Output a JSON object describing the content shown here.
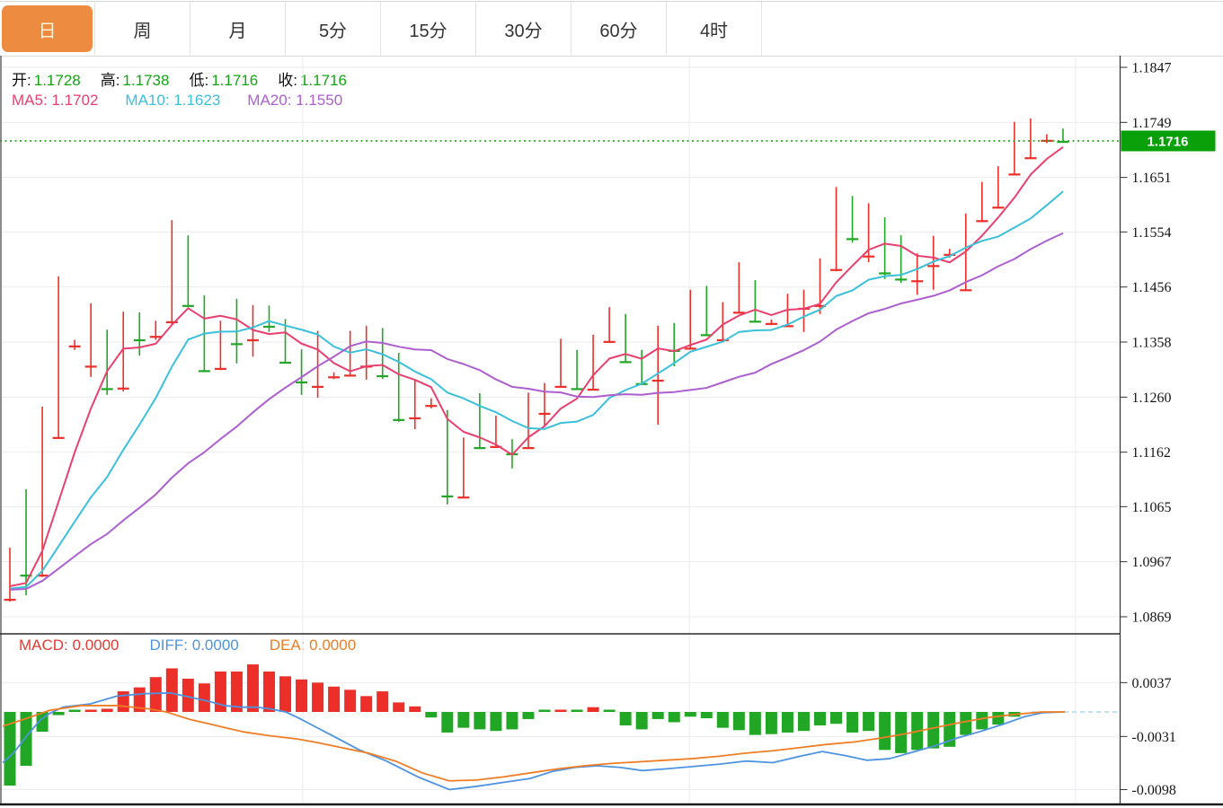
{
  "header": {
    "tabs": [
      {
        "label": "日",
        "selected": true
      },
      {
        "label": "周",
        "selected": false
      },
      {
        "label": "月",
        "selected": false
      },
      {
        "label": "5分",
        "selected": false
      },
      {
        "label": "15分",
        "selected": false
      },
      {
        "label": "30分",
        "selected": false
      },
      {
        "label": "60分",
        "selected": false
      },
      {
        "label": "4时",
        "selected": false
      }
    ]
  },
  "legend": {
    "ohlc": [
      {
        "label": "开:",
        "value": "1.1728"
      },
      {
        "label": "高:",
        "value": "1.1738"
      },
      {
        "label": "低:",
        "value": "1.1716"
      },
      {
        "label": "收:",
        "value": "1.1716"
      }
    ],
    "ma": [
      {
        "label": "MA5:",
        "value": "1.1702",
        "color": "#E8406F"
      },
      {
        "label": "MA10:",
        "value": "1.1623",
        "color": "#3BC0DA"
      },
      {
        "label": "MA20:",
        "value": "1.1550",
        "color": "#AC5FCE"
      }
    ]
  },
  "macd_legend": [
    {
      "label": "MACD:",
      "value": "0.0000",
      "color": "#E23B33"
    },
    {
      "label": "DIFF:",
      "value": "0.0000",
      "color": "#4E93E0"
    },
    {
      "label": "DEA:",
      "value": "0.0000",
      "color": "#EF7D26"
    }
  ],
  "colors": {
    "up": "#ED2F29",
    "down": "#22A626",
    "ma5": "#E8406F",
    "ma10": "#3BC0DA",
    "ma20": "#AC5FCE",
    "diff": "#4E93E0",
    "dea": "#EF7D26",
    "grid": "#EBEBF1",
    "axis": "#333333",
    "border_dark": "#1a1a1a",
    "dotted_price": "#18A818",
    "tag_bg": "#0AA00A",
    "tab_active_bg": "#ED8B40",
    "value_green": "#13A413",
    "zero_dash": "#A9D9E8"
  },
  "chart_data": {
    "type": "candlestick",
    "title": "",
    "price_axis_ticks": [
      "1.1847",
      "1.1749",
      "1.1651",
      "1.1554",
      "1.1456",
      "1.1358",
      "1.1260",
      "1.1162",
      "1.1065",
      "1.0967",
      "1.0869"
    ],
    "current_price": "1.1716",
    "ma_periods": [
      5,
      10,
      20
    ],
    "prehistory_close": 1.0915,
    "candles": [
      [
        1.0901,
        1.0992,
        1.0896,
        1.0957
      ],
      [
        1.0952,
        1.1096,
        1.0907,
        1.0944
      ],
      [
        1.0944,
        1.1243,
        1.094,
        1.12
      ],
      [
        1.1189,
        1.1475,
        1.1187,
        1.1352
      ],
      [
        1.1352,
        1.1362,
        1.1344,
        1.1355
      ],
      [
        1.1316,
        1.1427,
        1.1296,
        1.1348
      ],
      [
        1.1347,
        1.138,
        1.1264,
        1.1276
      ],
      [
        1.1277,
        1.1412,
        1.127,
        1.14
      ],
      [
        1.1395,
        1.1411,
        1.1334,
        1.1363
      ],
      [
        1.1369,
        1.1396,
        1.1362,
        1.1388
      ],
      [
        1.1395,
        1.1575,
        1.139,
        1.1516
      ],
      [
        1.1515,
        1.1548,
        1.142,
        1.1424
      ],
      [
        1.142,
        1.1441,
        1.1305,
        1.1308
      ],
      [
        1.1312,
        1.1396,
        1.1308,
        1.1388
      ],
      [
        1.1387,
        1.1435,
        1.132,
        1.1356
      ],
      [
        1.1363,
        1.1424,
        1.1332,
        1.1422
      ],
      [
        1.1419,
        1.1423,
        1.1376,
        1.1387
      ],
      [
        1.1382,
        1.1399,
        1.132,
        1.1323
      ],
      [
        1.1339,
        1.1345,
        1.1264,
        1.1288
      ],
      [
        1.128,
        1.1378,
        1.1259,
        1.1304
      ],
      [
        1.1297,
        1.1304,
        1.1292,
        1.13
      ],
      [
        1.13,
        1.1378,
        1.1298,
        1.1315
      ],
      [
        1.1316,
        1.1387,
        1.1291,
        1.1368
      ],
      [
        1.1371,
        1.1383,
        1.1292,
        1.1299
      ],
      [
        1.1299,
        1.1339,
        1.1216,
        1.1221
      ],
      [
        1.1224,
        1.1291,
        1.1203,
        1.1251
      ],
      [
        1.1246,
        1.1258,
        1.124,
        1.125
      ],
      [
        1.1189,
        1.1237,
        1.1069,
        1.1085
      ],
      [
        1.1083,
        1.1188,
        1.108,
        1.1184
      ],
      [
        1.1181,
        1.1267,
        1.1168,
        1.1171
      ],
      [
        1.1173,
        1.1227,
        1.117,
        1.1187
      ],
      [
        1.1181,
        1.1185,
        1.1133,
        1.116
      ],
      [
        1.1171,
        1.1268,
        1.1168,
        1.124
      ],
      [
        1.1232,
        1.1285,
        1.1208,
        1.1283
      ],
      [
        1.128,
        1.1364,
        1.1277,
        1.1328
      ],
      [
        1.1339,
        1.1344,
        1.1274,
        1.1276
      ],
      [
        1.1275,
        1.1371,
        1.1272,
        1.1368
      ],
      [
        1.136,
        1.142,
        1.1357,
        1.1388
      ],
      [
        1.1387,
        1.1408,
        1.1322,
        1.1324
      ],
      [
        1.1329,
        1.1344,
        1.1283,
        1.1285
      ],
      [
        1.1291,
        1.1387,
        1.1211,
        1.1368
      ],
      [
        1.1368,
        1.1392,
        1.1315,
        1.1344
      ],
      [
        1.1348,
        1.1451,
        1.1345,
        1.1443
      ],
      [
        1.1444,
        1.1458,
        1.137,
        1.1372
      ],
      [
        1.1363,
        1.1429,
        1.136,
        1.1419
      ],
      [
        1.1412,
        1.15,
        1.141,
        1.1448
      ],
      [
        1.146,
        1.1468,
        1.1394,
        1.1396
      ],
      [
        1.1392,
        1.1398,
        1.1388,
        1.1395
      ],
      [
        1.1388,
        1.1444,
        1.1386,
        1.142
      ],
      [
        1.1419,
        1.1451,
        1.1376,
        1.1427
      ],
      [
        1.1424,
        1.1507,
        1.1408,
        1.1492
      ],
      [
        1.1488,
        1.1634,
        1.1484,
        1.1587
      ],
      [
        1.161,
        1.1618,
        1.1535,
        1.1543
      ],
      [
        1.1512,
        1.1605,
        1.15,
        1.1562
      ],
      [
        1.1567,
        1.158,
        1.147,
        1.1482
      ],
      [
        1.1482,
        1.1548,
        1.1463,
        1.1471
      ],
      [
        1.1468,
        1.1516,
        1.1442,
        1.15
      ],
      [
        1.1495,
        1.1547,
        1.1451,
        1.1527
      ],
      [
        1.1515,
        1.1524,
        1.1508,
        1.1519
      ],
      [
        1.1452,
        1.1587,
        1.1449,
        1.1579
      ],
      [
        1.1575,
        1.1643,
        1.1572,
        1.1611
      ],
      [
        1.1599,
        1.1671,
        1.1596,
        1.1663
      ],
      [
        1.1658,
        1.175,
        1.1655,
        1.1703
      ],
      [
        1.1687,
        1.1756,
        1.1684,
        1.1724
      ],
      [
        1.1718,
        1.1728,
        1.1712,
        1.1719
      ],
      [
        1.1728,
        1.1738,
        1.1716,
        1.1716
      ]
    ],
    "macd": {
      "axis_ticks": [
        "0.0037",
        "-0.0031",
        "-0.0098"
      ],
      "hist_x1e4": [
        -93,
        -68,
        -25,
        -4,
        -2,
        2,
        4,
        26,
        31,
        44,
        55,
        42,
        36,
        51,
        51,
        60,
        51,
        45,
        41,
        37,
        32,
        28,
        20,
        26,
        12,
        7,
        -7,
        -26,
        -20,
        -22,
        -24,
        -22,
        -9,
        -2,
        1,
        -2,
        6,
        -2,
        -17,
        -22,
        -9,
        -13,
        -6,
        -8,
        -20,
        -23,
        -29,
        -28,
        -26,
        -24,
        -17,
        -15,
        -26,
        -24,
        -48,
        -52,
        -48,
        -46,
        -44,
        -29,
        -22,
        -16,
        -6,
        null,
        null,
        null
      ],
      "diff_x1e4": [
        [
          3,
          -64
        ],
        [
          15,
          -52
        ],
        [
          30,
          -30
        ],
        [
          45,
          -10
        ],
        [
          55,
          -2
        ],
        [
          70,
          6
        ],
        [
          100,
          10
        ],
        [
          130,
          20
        ],
        [
          160,
          23
        ],
        [
          190,
          24
        ],
        [
          210,
          19
        ],
        [
          230,
          14
        ],
        [
          250,
          8
        ],
        [
          268,
          6
        ],
        [
          285,
          6
        ],
        [
          300,
          4
        ],
        [
          318,
          0
        ],
        [
          333,
          -8
        ],
        [
          348,
          -17
        ],
        [
          370,
          -30
        ],
        [
          400,
          -48
        ],
        [
          430,
          -62
        ],
        [
          465,
          -82
        ],
        [
          500,
          -98
        ],
        [
          530,
          -94
        ],
        [
          560,
          -89
        ],
        [
          590,
          -84
        ],
        [
          615,
          -75
        ],
        [
          640,
          -70
        ],
        [
          665,
          -68
        ],
        [
          690,
          -70
        ],
        [
          715,
          -74
        ],
        [
          740,
          -72
        ],
        [
          770,
          -69
        ],
        [
          800,
          -66
        ],
        [
          830,
          -62
        ],
        [
          860,
          -64
        ],
        [
          890,
          -56
        ],
        [
          915,
          -50
        ],
        [
          940,
          -55
        ],
        [
          965,
          -61
        ],
        [
          990,
          -59
        ],
        [
          1015,
          -51
        ],
        [
          1040,
          -43
        ],
        [
          1065,
          -33
        ],
        [
          1090,
          -25
        ],
        [
          1115,
          -16
        ],
        [
          1140,
          -6
        ],
        [
          1160,
          -1
        ],
        [
          1185,
          0
        ]
      ],
      "dea_x1e4": [
        [
          3,
          -18
        ],
        [
          30,
          -8
        ],
        [
          55,
          2
        ],
        [
          90,
          8
        ],
        [
          130,
          8
        ],
        [
          165,
          4
        ],
        [
          185,
          0
        ],
        [
          210,
          -9
        ],
        [
          240,
          -17
        ],
        [
          270,
          -25
        ],
        [
          300,
          -30
        ],
        [
          330,
          -34
        ],
        [
          350,
          -38
        ],
        [
          380,
          -45
        ],
        [
          410,
          -52
        ],
        [
          440,
          -62
        ],
        [
          470,
          -77
        ],
        [
          500,
          -87
        ],
        [
          530,
          -86
        ],
        [
          560,
          -82
        ],
        [
          590,
          -77
        ],
        [
          620,
          -72
        ],
        [
          650,
          -68
        ],
        [
          680,
          -65
        ],
        [
          710,
          -63
        ],
        [
          740,
          -61
        ],
        [
          770,
          -59
        ],
        [
          800,
          -56
        ],
        [
          830,
          -52
        ],
        [
          860,
          -49
        ],
        [
          890,
          -45
        ],
        [
          920,
          -41
        ],
        [
          950,
          -38
        ],
        [
          980,
          -33
        ],
        [
          1010,
          -27
        ],
        [
          1040,
          -20
        ],
        [
          1070,
          -13
        ],
        [
          1100,
          -7
        ],
        [
          1130,
          -3
        ],
        [
          1160,
          0
        ],
        [
          1185,
          0
        ]
      ]
    }
  }
}
